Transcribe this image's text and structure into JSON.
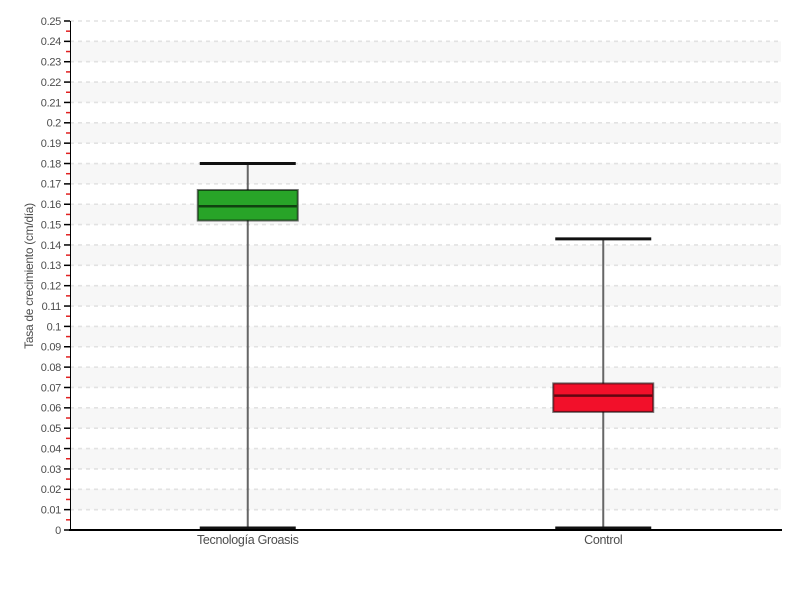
{
  "chart_data": {
    "type": "boxplot",
    "title": "",
    "ylabel": "Tasa de crecimiento (cm/día)",
    "xlabel": "",
    "categories": [
      "Tecnología Groasis",
      "Control"
    ],
    "series": [
      {
        "name": "Tecnología Groasis",
        "min": 0.001,
        "q1": 0.152,
        "median": 0.159,
        "q3": 0.167,
        "max": 0.18,
        "color": "#28a428"
      },
      {
        "name": "Control",
        "min": 0.001,
        "q1": 0.058,
        "median": 0.066,
        "q3": 0.072,
        "max": 0.143,
        "color": "#f2102a"
      }
    ],
    "axis": {
      "ymin": 0,
      "ymax": 0.25,
      "tick_interval": 0.01,
      "minor_tick_interval": 0.005,
      "ytick_labels": [
        "0",
        "0.01",
        "0.02",
        "0.03",
        "0.04",
        "0.05",
        "0.06",
        "0.07",
        "0.08",
        "0.09",
        "0.1",
        "0.11",
        "0.12",
        "0.13",
        "0.14",
        "0.15",
        "0.16",
        "0.17",
        "0.18",
        "0.19",
        "0.2",
        "0.21",
        "0.22",
        "0.23",
        "0.24",
        "0.25"
      ],
      "grid": true,
      "legend": "none"
    },
    "style": {
      "band_fill": "#f7f7f7",
      "gridline_color": "#e2e2e2",
      "axis_color": "#000000",
      "tick_color": "#000000",
      "minor_tick_color": "#e02020",
      "label_color": "#4d4d4d",
      "whisker_line_color": "#666666",
      "whisker_cap_color": "#111111",
      "box_border_color": "rgba(0,0,0,0.55)",
      "median_line_color": "rgba(0,0,0,0.6)"
    }
  }
}
